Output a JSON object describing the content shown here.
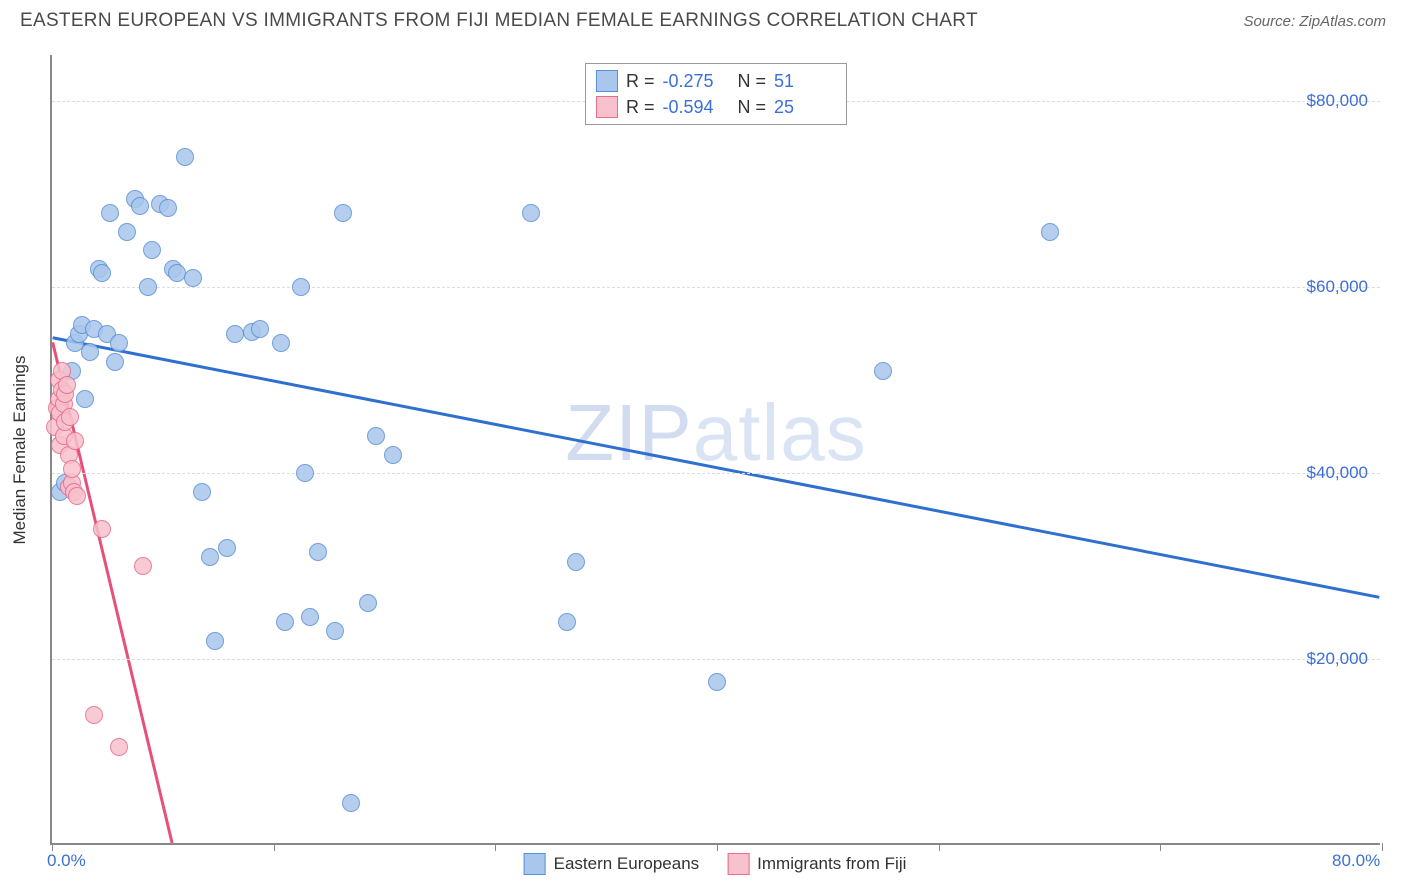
{
  "header": {
    "title": "EASTERN EUROPEAN VS IMMIGRANTS FROM FIJI MEDIAN FEMALE EARNINGS CORRELATION CHART",
    "source": "Source: ZipAtlas.com"
  },
  "chart": {
    "type": "scatter",
    "ylabel": "Median Female Earnings",
    "watermark_main": "ZIP",
    "watermark_sub": "atlas",
    "xlim": [
      0,
      80
    ],
    "ylim": [
      0,
      85000
    ],
    "x_ticks": [
      0,
      13.33,
      26.67,
      40,
      53.33,
      66.67,
      80
    ],
    "x_tick_labels": {
      "0": "0.0%",
      "80": "80.0%"
    },
    "y_gridlines": [
      20000,
      40000,
      60000,
      80000
    ],
    "y_tick_labels": {
      "20000": "$20,000",
      "40000": "$40,000",
      "60000": "$60,000",
      "80000": "$80,000"
    },
    "background_color": "#ffffff",
    "grid_color": "#dddddd",
    "axis_color": "#888888",
    "tick_label_color": "#3b6fd6",
    "marker_radius": 9,
    "marker_border_width": 1.5,
    "line_width": 3,
    "series": [
      {
        "name": "Eastern Europeans",
        "fill_color": "#a9c6ec",
        "stroke_color": "#5a8fd6",
        "line_color": "#2e6fd0",
        "R": "-0.275",
        "N": "51",
        "regression": {
          "x1": 0,
          "y1": 54500,
          "x2": 80,
          "y2": 26500
        },
        "points": [
          [
            0.5,
            38000
          ],
          [
            0.8,
            39000
          ],
          [
            1.2,
            51000
          ],
          [
            1.4,
            54000
          ],
          [
            1.6,
            55000
          ],
          [
            1.8,
            56000
          ],
          [
            2.0,
            48000
          ],
          [
            2.3,
            53000
          ],
          [
            2.5,
            55500
          ],
          [
            2.8,
            62000
          ],
          [
            3.0,
            61500
          ],
          [
            3.3,
            55000
          ],
          [
            3.5,
            68000
          ],
          [
            3.8,
            52000
          ],
          [
            4.0,
            54000
          ],
          [
            4.5,
            66000
          ],
          [
            5.0,
            69500
          ],
          [
            5.3,
            68800
          ],
          [
            5.8,
            60000
          ],
          [
            6.0,
            64000
          ],
          [
            6.5,
            69000
          ],
          [
            7.0,
            68500
          ],
          [
            7.3,
            62000
          ],
          [
            7.5,
            61500
          ],
          [
            8.0,
            74000
          ],
          [
            8.5,
            61000
          ],
          [
            9.0,
            38000
          ],
          [
            9.5,
            31000
          ],
          [
            9.8,
            22000
          ],
          [
            10.5,
            32000
          ],
          [
            11.0,
            55000
          ],
          [
            12.0,
            55200
          ],
          [
            12.5,
            55500
          ],
          [
            13.8,
            54000
          ],
          [
            14.0,
            24000
          ],
          [
            15.0,
            60000
          ],
          [
            15.2,
            40000
          ],
          [
            15.5,
            24500
          ],
          [
            16.0,
            31500
          ],
          [
            17.0,
            23000
          ],
          [
            17.5,
            68000
          ],
          [
            18.0,
            4500
          ],
          [
            19.0,
            26000
          ],
          [
            19.5,
            44000
          ],
          [
            20.5,
            42000
          ],
          [
            28.8,
            68000
          ],
          [
            31.0,
            24000
          ],
          [
            31.5,
            30500
          ],
          [
            40.0,
            17500
          ],
          [
            50.0,
            51000
          ],
          [
            60.0,
            66000
          ]
        ]
      },
      {
        "name": "Immigrants from Fiji",
        "fill_color": "#f7c1cd",
        "stroke_color": "#e96a8a",
        "line_color": "#e6507a",
        "R": "-0.594",
        "N": "25",
        "regression": {
          "x1": 0,
          "y1": 54000,
          "x2": 7.2,
          "y2": 0
        },
        "regression_dash_extend": {
          "x1": 7.2,
          "y1": 0,
          "x2": 7.8,
          "y2": -4500
        },
        "points": [
          [
            0.2,
            45000
          ],
          [
            0.3,
            47000
          ],
          [
            0.4,
            48000
          ],
          [
            0.4,
            50000
          ],
          [
            0.5,
            43000
          ],
          [
            0.5,
            46500
          ],
          [
            0.6,
            49000
          ],
          [
            0.6,
            51000
          ],
          [
            0.7,
            44000
          ],
          [
            0.7,
            47500
          ],
          [
            0.8,
            45500
          ],
          [
            0.8,
            48500
          ],
          [
            0.9,
            49500
          ],
          [
            1.0,
            38500
          ],
          [
            1.0,
            42000
          ],
          [
            1.1,
            46000
          ],
          [
            1.2,
            39000
          ],
          [
            1.2,
            40500
          ],
          [
            1.3,
            38000
          ],
          [
            1.4,
            43500
          ],
          [
            1.5,
            37500
          ],
          [
            2.5,
            14000
          ],
          [
            3.0,
            34000
          ],
          [
            4.0,
            10500
          ],
          [
            5.5,
            30000
          ]
        ]
      }
    ],
    "legend_bottom": [
      {
        "label": "Eastern Europeans",
        "fill": "#a9c6ec",
        "stroke": "#5a8fd6"
      },
      {
        "label": "Immigrants from Fiji",
        "fill": "#f7c1cd",
        "stroke": "#e96a8a"
      }
    ]
  }
}
